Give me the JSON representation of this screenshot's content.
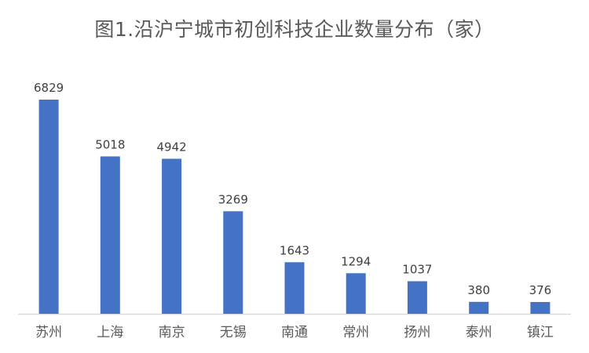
{
  "chart_data": {
    "type": "bar",
    "title": "图1.沿沪宁城市初创科技企业数量分布（家）",
    "categories": [
      "苏州",
      "上海",
      "南京",
      "无锡",
      "南通",
      "常州",
      "扬州",
      "泰州",
      "镇江"
    ],
    "values": [
      6829,
      5018,
      4942,
      3269,
      1643,
      1294,
      1037,
      380,
      376
    ],
    "xlabel": "",
    "ylabel": "",
    "ylim": [
      0,
      7000
    ],
    "grid": false,
    "legend": "none",
    "bar_color": "#4472C4",
    "axis_color": "#D9D9D9"
  }
}
